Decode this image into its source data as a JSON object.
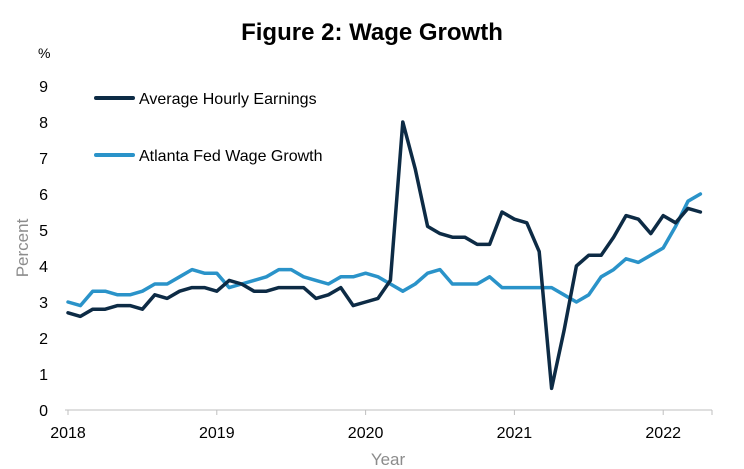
{
  "chart_data": {
    "type": "line",
    "title": "Figure 2: Wage Growth",
    "unit_label": "%",
    "xlabel": "Year",
    "ylabel": "Percent",
    "ylim": [
      0,
      9
    ],
    "yticks": [
      0,
      1,
      2,
      3,
      4,
      5,
      6,
      7,
      8,
      9
    ],
    "xlim": [
      "2018-01",
      "2022-04"
    ],
    "xticks": [
      {
        "label": "2018",
        "date": "2018-01"
      },
      {
        "label": "2019",
        "date": "2019-01"
      },
      {
        "label": "2020",
        "date": "2020-01"
      },
      {
        "label": "2021",
        "date": "2021-01"
      },
      {
        "label": "2022",
        "date": "2022-01"
      }
    ],
    "grid": false,
    "legend_position": "top-left",
    "x": [
      "2018-01",
      "2018-02",
      "2018-03",
      "2018-04",
      "2018-05",
      "2018-06",
      "2018-07",
      "2018-08",
      "2018-09",
      "2018-10",
      "2018-11",
      "2018-12",
      "2019-01",
      "2019-02",
      "2019-03",
      "2019-04",
      "2019-05",
      "2019-06",
      "2019-07",
      "2019-08",
      "2019-09",
      "2019-10",
      "2019-11",
      "2019-12",
      "2020-01",
      "2020-02",
      "2020-03",
      "2020-04",
      "2020-05",
      "2020-06",
      "2020-07",
      "2020-08",
      "2020-09",
      "2020-10",
      "2020-11",
      "2020-12",
      "2021-01",
      "2021-02",
      "2021-03",
      "2021-04",
      "2021-05",
      "2021-06",
      "2021-07",
      "2021-08",
      "2021-09",
      "2021-10",
      "2021-11",
      "2021-12",
      "2022-01",
      "2022-02",
      "2022-03",
      "2022-04"
    ],
    "series": [
      {
        "name": "Average Hourly Earnings",
        "color": "#0d2b45",
        "values": [
          2.7,
          2.6,
          2.8,
          2.8,
          2.9,
          2.9,
          2.8,
          3.2,
          3.1,
          3.3,
          3.4,
          3.4,
          3.3,
          3.6,
          3.5,
          3.3,
          3.3,
          3.4,
          3.4,
          3.4,
          3.1,
          3.2,
          3.4,
          2.9,
          3.0,
          3.1,
          3.6,
          8.0,
          6.7,
          5.1,
          4.9,
          4.8,
          4.8,
          4.6,
          4.6,
          5.5,
          5.3,
          5.2,
          4.4,
          0.6,
          2.2,
          4.0,
          4.3,
          4.3,
          4.8,
          5.4,
          5.3,
          4.9,
          5.4,
          5.2,
          5.6,
          5.5
        ]
      },
      {
        "name": "Atlanta Fed Wage Growth",
        "color": "#2a93c9",
        "values": [
          3.0,
          2.9,
          3.3,
          3.3,
          3.2,
          3.2,
          3.3,
          3.5,
          3.5,
          3.7,
          3.9,
          3.8,
          3.8,
          3.4,
          3.5,
          3.6,
          3.7,
          3.9,
          3.9,
          3.7,
          3.6,
          3.5,
          3.7,
          3.7,
          3.8,
          3.7,
          3.5,
          3.3,
          3.5,
          3.8,
          3.9,
          3.5,
          3.5,
          3.5,
          3.7,
          3.4,
          3.4,
          3.4,
          3.4,
          3.4,
          3.2,
          3.0,
          3.2,
          3.7,
          3.9,
          4.2,
          4.1,
          4.3,
          4.5,
          5.1,
          5.8,
          6.0
        ]
      }
    ]
  }
}
